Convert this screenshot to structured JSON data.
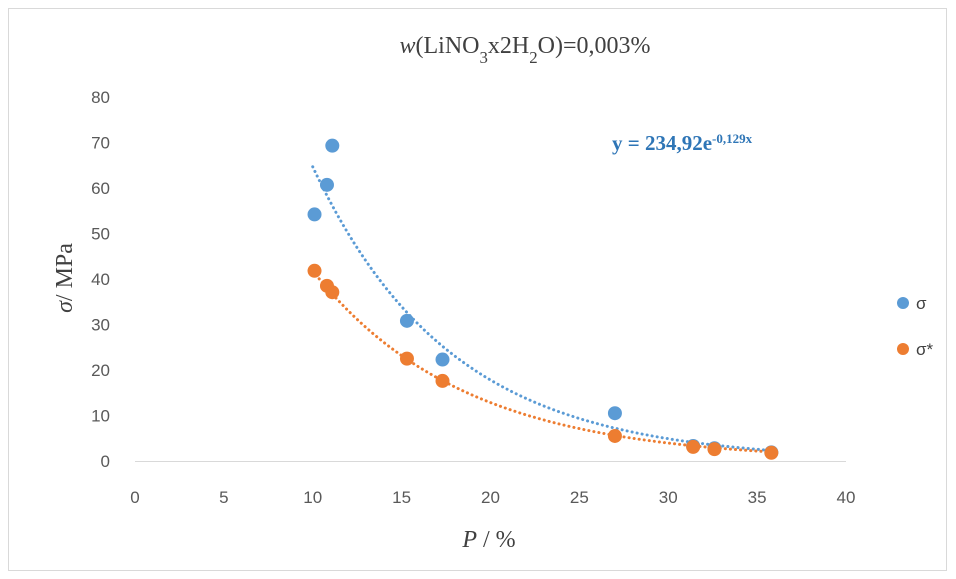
{
  "chart_data": {
    "type": "scatter",
    "title": {
      "parts": [
        {
          "text": "w",
          "italic": true
        },
        {
          "text": "(LiNO"
        },
        {
          "text": "3",
          "sub": true
        },
        {
          "text": "x2H"
        },
        {
          "text": "2",
          "sub": true
        },
        {
          "text": "O)=0,003%"
        }
      ]
    },
    "xlabel": {
      "parts": [
        {
          "text": "P",
          "italic": true
        },
        {
          "text": " / %"
        }
      ]
    },
    "ylabel": {
      "parts": [
        {
          "text": "σ",
          "italic": true
        },
        {
          "text": "/ MPa"
        }
      ]
    },
    "xlim": [
      0,
      40
    ],
    "ylim": [
      0,
      80
    ],
    "xticks": [
      0,
      5,
      10,
      15,
      20,
      25,
      30,
      35,
      40
    ],
    "yticks": [
      0,
      10,
      20,
      30,
      40,
      50,
      60,
      70,
      80
    ],
    "grid": false,
    "legend_position": "right",
    "series": [
      {
        "name": "σ",
        "color": "#5b9bd5",
        "points": [
          [
            10.1,
            54.2
          ],
          [
            10.8,
            60.7
          ],
          [
            11.1,
            69.3
          ],
          [
            15.3,
            30.8
          ],
          [
            17.3,
            22.3
          ],
          [
            27.0,
            10.5
          ],
          [
            31.4,
            3.3
          ],
          [
            32.6,
            2.8
          ],
          [
            35.8,
            1.9
          ]
        ],
        "trendline": {
          "type": "exponential",
          "a": 234.92,
          "b": -0.129,
          "x_range": [
            10.0,
            35.9
          ],
          "color": "#5b9bd5"
        }
      },
      {
        "name": "σ*",
        "color": "#ed7d31",
        "points": [
          [
            10.1,
            41.8
          ],
          [
            10.8,
            38.5
          ],
          [
            11.1,
            37.1
          ],
          [
            15.3,
            22.5
          ],
          [
            17.3,
            17.6
          ],
          [
            27.0,
            5.5
          ],
          [
            31.4,
            3.1
          ],
          [
            32.6,
            2.6
          ],
          [
            35.8,
            1.8
          ]
        ],
        "trendline": {
          "type": "exponential",
          "a": 136.0,
          "b": -0.118,
          "x_range": [
            10.0,
            35.9
          ],
          "color": "#ed7d31"
        }
      }
    ],
    "annotations": [
      {
        "name": "trendline-equation",
        "parts": [
          {
            "text": "y = 234,92e"
          },
          {
            "text": "-0,129x",
            "sup": true
          }
        ],
        "color": "#2e75b6"
      }
    ]
  }
}
